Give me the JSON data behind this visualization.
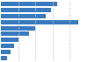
{
  "values": [
    6500,
    5800,
    5200,
    9000,
    4000,
    3300,
    2000,
    1500,
    1100,
    700
  ],
  "bar_color": "#3a7bbf",
  "background_color": "#ffffff",
  "bar_height": 0.72,
  "grid_color": "#c8c8c8",
  "grid_linestyle": "--",
  "grid_linewidth": 0.5,
  "xmax": 10000
}
